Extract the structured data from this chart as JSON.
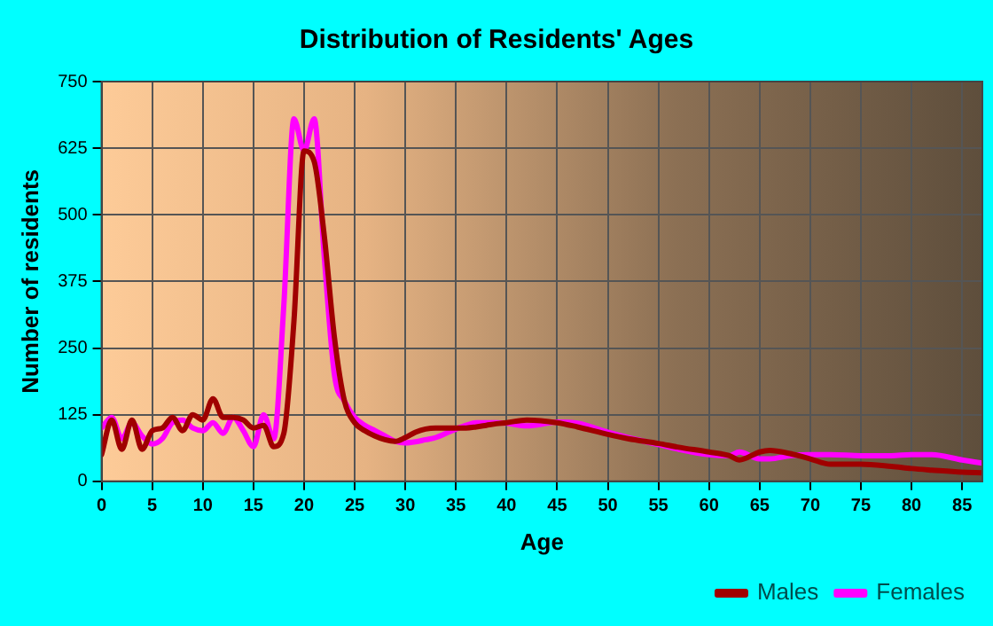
{
  "chart_data": {
    "type": "line",
    "title": "Distribution of Residents' Ages",
    "xlabel": "Age",
    "ylabel": "Number of residents",
    "x": [
      0,
      1,
      2,
      3,
      4,
      5,
      6,
      7,
      8,
      9,
      10,
      11,
      12,
      13,
      14,
      15,
      16,
      17,
      18,
      19,
      20,
      21,
      22,
      23,
      24,
      25,
      26,
      27,
      28,
      29,
      30,
      31,
      32,
      33,
      34,
      35,
      36,
      37,
      38,
      39,
      40,
      42,
      45,
      47,
      50,
      52,
      55,
      57,
      60,
      62,
      63,
      65,
      66,
      68,
      70,
      72,
      75,
      78,
      80,
      82,
      85,
      87
    ],
    "series": [
      {
        "name": "Males",
        "color": "#a00000",
        "values": [
          50,
          115,
          60,
          115,
          60,
          95,
          100,
          120,
          95,
          125,
          115,
          155,
          120,
          120,
          115,
          100,
          105,
          65,
          90,
          300,
          620,
          600,
          460,
          270,
          150,
          110,
          95,
          85,
          78,
          75,
          82,
          92,
          98,
          100,
          100,
          100,
          100,
          102,
          105,
          108,
          110,
          115,
          110,
          102,
          88,
          80,
          71,
          64,
          55,
          48,
          40,
          55,
          58,
          52,
          42,
          32,
          32,
          28,
          24,
          21,
          17,
          16
        ]
      },
      {
        "name": "Females",
        "color": "#ff00ff",
        "values": [
          100,
          120,
          80,
          110,
          85,
          70,
          80,
          110,
          115,
          100,
          95,
          110,
          90,
          120,
          95,
          65,
          125,
          80,
          330,
          680,
          620,
          680,
          420,
          200,
          150,
          120,
          105,
          95,
          85,
          75,
          72,
          74,
          78,
          82,
          90,
          98,
          105,
          110,
          110,
          110,
          109,
          104,
          111,
          109,
          92,
          82,
          69,
          60,
          50,
          48,
          55,
          42,
          42,
          48,
          50,
          50,
          48,
          48,
          50,
          50,
          40,
          34
        ]
      }
    ],
    "xlim": [
      0,
      87
    ],
    "xticks": [
      0,
      5,
      10,
      15,
      20,
      25,
      30,
      35,
      40,
      45,
      50,
      55,
      60,
      65,
      70,
      75,
      80,
      85
    ],
    "ylim": [
      0,
      750
    ],
    "yticks": [
      0,
      125,
      250,
      375,
      500,
      625,
      750
    ],
    "grid": true,
    "legend": "bottom right",
    "marker": "none",
    "line_style": "solid"
  }
}
